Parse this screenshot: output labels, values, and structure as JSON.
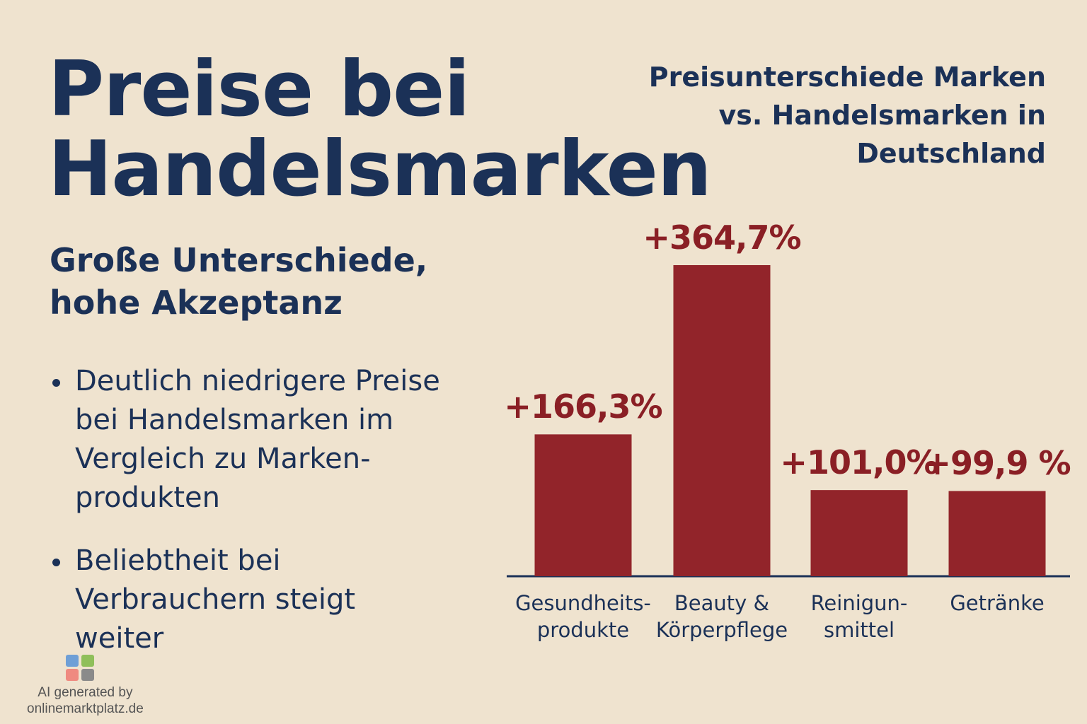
{
  "header": {
    "title": "Preise bei\nHandelsmarken",
    "subtitle": "Große Unterschiede,\nhohe Akzeptanz"
  },
  "bullets": [
    "Deutlich niedrigere Preise\nbei Handelsmarken im\nVergleich zu Marken-\nprodukten",
    "Beliebtheit bei\nVerbrauchern steigt\nweiter"
  ],
  "chart_data": {
    "type": "bar",
    "title": "Preisunterschiede Marken\nvs. Handelsmarken in\nDeutschland",
    "categories": [
      "Gesundheits-\nprodukte",
      "Beauty &\nKörperpflege",
      "Reinigun-\nsmittel",
      "Getränke"
    ],
    "values": [
      166.3,
      364.7,
      101.0,
      99.9
    ],
    "value_labels": [
      "+166,3%",
      "+364,7%",
      "+101,0%",
      "+99,9 %"
    ],
    "color": "#92242a"
  },
  "footer": {
    "credit": "AI generated by\nonlinemarktplatz.de"
  }
}
